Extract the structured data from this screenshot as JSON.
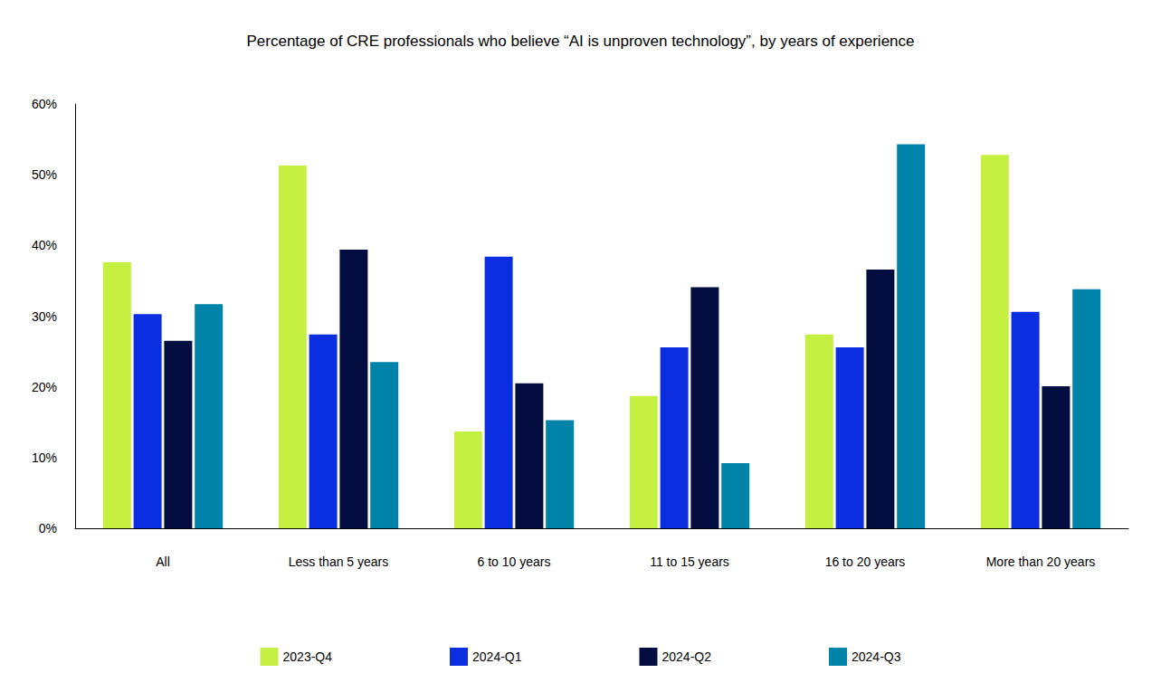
{
  "chart_data": {
    "type": "bar",
    "title": "Percentage of CRE professionals who believe “AI is unproven technology”, by years of experience",
    "categories": [
      "All",
      "Less than 5 years",
      "6 to 10 years",
      "11 to 15 years",
      "16 to 20 years",
      "More than 20 years"
    ],
    "series": [
      {
        "name": "2023-Q4",
        "color": "#c6f041",
        "values": [
          37.6,
          51.3,
          13.7,
          18.7,
          27.4,
          52.8
        ]
      },
      {
        "name": "2024-Q1",
        "color": "#0a2ee0",
        "values": [
          30.3,
          27.4,
          38.4,
          25.6,
          25.6,
          30.6
        ]
      },
      {
        "name": "2024-Q2",
        "color": "#030d40",
        "values": [
          26.5,
          39.4,
          20.5,
          34.1,
          36.6,
          20.1
        ]
      },
      {
        "name": "2024-Q3",
        "color": "#0083a8",
        "values": [
          31.7,
          23.5,
          15.3,
          9.2,
          54.3,
          33.8
        ]
      }
    ],
    "ylim": [
      0,
      60
    ],
    "yticks": [
      {
        "value": 0,
        "label": "0%"
      },
      {
        "value": 10,
        "label": "10%"
      },
      {
        "value": 20,
        "label": "20%"
      },
      {
        "value": 30,
        "label": "30%"
      },
      {
        "value": 40,
        "label": "40%"
      },
      {
        "value": 50,
        "label": "50%"
      },
      {
        "value": 60,
        "label": "60%"
      }
    ],
    "grid": false,
    "legend": "bottom"
  }
}
